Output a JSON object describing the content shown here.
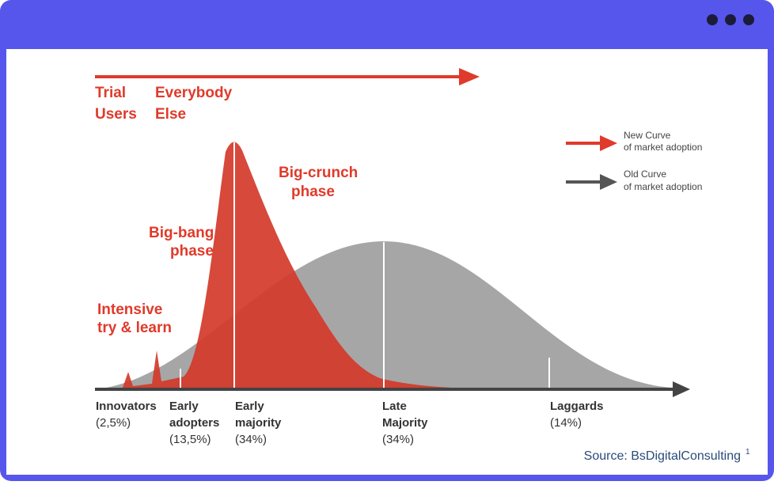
{
  "diagram": {
    "top_labels": [
      {
        "lines": [
          "Trial",
          "Users"
        ]
      },
      {
        "lines": [
          "Everybody",
          "Else"
        ]
      }
    ],
    "phases": [
      {
        "lines": [
          "Big-crunch",
          "phase"
        ]
      },
      {
        "lines": [
          "Big-bang",
          "phase"
        ]
      },
      {
        "lines": [
          "Intensive",
          "try & learn"
        ]
      }
    ],
    "legend": [
      {
        "lines": [
          "New Curve",
          "of market adoption"
        ]
      },
      {
        "lines": [
          "Old Curve",
          "of market adoption"
        ]
      }
    ],
    "segments": [
      {
        "name": [
          "Innovators"
        ],
        "share": "(2,5%)"
      },
      {
        "name": [
          "Early",
          "adopters"
        ],
        "share": "(13,5%)"
      },
      {
        "name": [
          "Early",
          "majority"
        ],
        "share": "(34%)"
      },
      {
        "name": [
          "Late",
          "Majority"
        ],
        "share": "(34%)"
      },
      {
        "name": [
          "Laggards"
        ],
        "share": "(14%)"
      }
    ],
    "source": {
      "text": "Source: BsDigitalConsulting",
      "note": "1"
    }
  }
}
